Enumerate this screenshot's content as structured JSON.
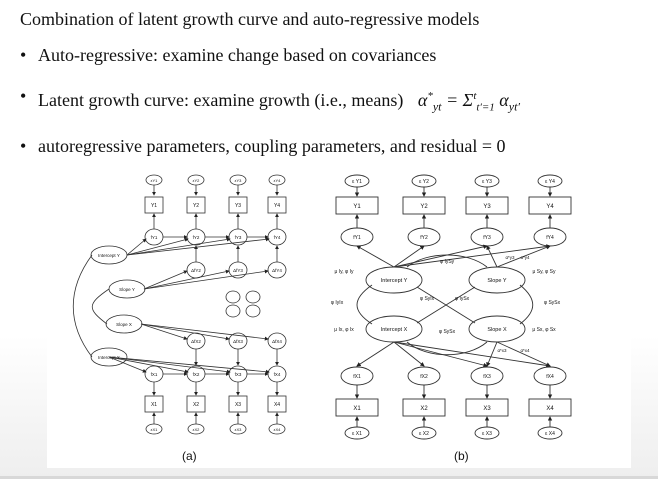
{
  "slide": {
    "title": "Combination of latent growth curve and auto-regressive models",
    "bullets": [
      {
        "text": "Auto-regressive:  examine change based on covariances"
      },
      {
        "text": "Latent growth curve:  examine growth (i.e., means)",
        "formula": "α*yt = Σt t′=1 αyt′"
      },
      {
        "text": "autoregressive parameters, coupling parameters, and residual = 0"
      }
    ],
    "bullet_glyph": "•"
  },
  "figure": {
    "panel_a": {
      "caption": "(a)",
      "y_boxes": [
        "Y1",
        "Y2",
        "Y3",
        "Y4"
      ],
      "y_errors": [
        "εY1",
        "εY2",
        "εY3",
        "εY4"
      ],
      "fy_nodes": [
        "fY1",
        "fY2",
        "fY3",
        "fY4"
      ],
      "dy_nodes": [
        "ΔfY2",
        "ΔfY3",
        "ΔfY4"
      ],
      "dx_nodes": [
        "ΔfX2",
        "ΔfX3",
        "ΔfX4"
      ],
      "fx_nodes": [
        "fX1",
        "fX2",
        "fX3",
        "fX4"
      ],
      "x_boxes": [
        "X1",
        "X2",
        "X3",
        "X4"
      ],
      "x_errors": [
        "εX1",
        "εX2",
        "εX3",
        "εX4"
      ],
      "latents": [
        "Intercept Y",
        "Slope Y",
        "Slope X",
        "Intercept X"
      ]
    },
    "panel_b": {
      "caption": "(b)",
      "y_errors": [
        "ε Y1",
        "ε Y2",
        "ε Y3",
        "ε Y4"
      ],
      "y_boxes": [
        "Y1",
        "Y2",
        "Y3",
        "Y4"
      ],
      "fy_nodes": [
        "fY1",
        "fY2",
        "fY3",
        "fY4"
      ],
      "latents": [
        "Intercept Y",
        "Slope Y",
        "Intercept X",
        "Slope X"
      ],
      "cov_labels": [
        "φ IySy",
        "φ SyIx",
        "φ IySx",
        "φ SySx",
        "φ IxSx"
      ],
      "fx_nodes": [
        "fX1",
        "fX2",
        "fX3",
        "fX4"
      ],
      "x_boxes": [
        "X1",
        "X2",
        "X3",
        "X4"
      ],
      "x_errors": [
        "ε X1",
        "ε X2",
        "ε X3",
        "ε X4"
      ],
      "side_labels": [
        "μ Iy,  φ Iy",
        "μ Sy,  φ Sy",
        "φ SySx",
        "φ IyIx",
        "μ Ix,  φ Ix",
        "μ Sx,  φ Sx"
      ],
      "coef_labels": [
        "α*y3",
        "α*y4",
        "α*x3",
        "α*x4"
      ]
    }
  }
}
